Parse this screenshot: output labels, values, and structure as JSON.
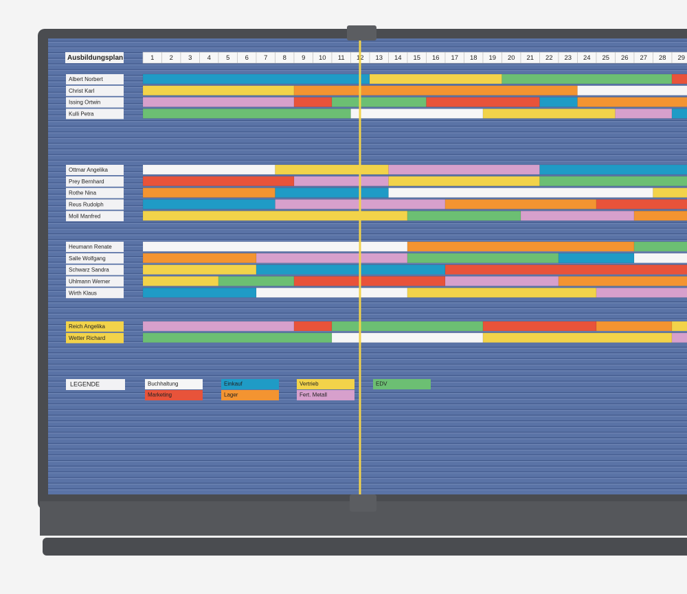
{
  "board": {
    "title": "Ausbildungsplan",
    "weeks": [
      1,
      2,
      3,
      4,
      5,
      6,
      7,
      8,
      9,
      10,
      11,
      12,
      13,
      14,
      15,
      16,
      17,
      18,
      19,
      20,
      21,
      22,
      23,
      24,
      25,
      26,
      27,
      28,
      29
    ],
    "groups": [
      {
        "rows": [
          {
            "name": "Albert Norbert",
            "segments": [
              {
                "from": 0,
                "to": 12,
                "color": "#1f9bc6"
              },
              {
                "from": 12,
                "to": 19,
                "color": "#f2d34a"
              },
              {
                "from": 19,
                "to": 28,
                "color": "#6cbf73"
              },
              {
                "from": 28,
                "to": 29,
                "color": "#e8533a"
              }
            ]
          },
          {
            "name": "Christ Karl",
            "segments": [
              {
                "from": 0,
                "to": 8,
                "color": "#f2d34a"
              },
              {
                "from": 8,
                "to": 23,
                "color": "#f39431"
              },
              {
                "from": 23,
                "to": 29,
                "color": "#f6f6f6"
              }
            ]
          },
          {
            "name": "Issing Ortwin",
            "segments": [
              {
                "from": 0,
                "to": 8,
                "color": "#d7a0cc"
              },
              {
                "from": 8,
                "to": 10,
                "color": "#e8533a"
              },
              {
                "from": 10,
                "to": 15,
                "color": "#6cbf73"
              },
              {
                "from": 15,
                "to": 21,
                "color": "#e8533a"
              },
              {
                "from": 21,
                "to": 23,
                "color": "#1f9bc6"
              },
              {
                "from": 23,
                "to": 29,
                "color": "#f39431"
              }
            ]
          },
          {
            "name": "Kulli Petra",
            "segments": [
              {
                "from": 0,
                "to": 11,
                "color": "#6cbf73"
              },
              {
                "from": 11,
                "to": 18,
                "color": "#f6f6f6"
              },
              {
                "from": 18,
                "to": 25,
                "color": "#f2d34a"
              },
              {
                "from": 25,
                "to": 28,
                "color": "#d7a0cc"
              },
              {
                "from": 28,
                "to": 29,
                "color": "#1f9bc6"
              }
            ]
          }
        ]
      },
      {
        "rows": [
          {
            "name": "Ottmar Angelika",
            "segments": [
              {
                "from": 0,
                "to": 7,
                "color": "#f6f6f6"
              },
              {
                "from": 7,
                "to": 13,
                "color": "#f2d34a"
              },
              {
                "from": 13,
                "to": 21,
                "color": "#d7a0cc"
              },
              {
                "from": 21,
                "to": 29,
                "color": "#1f9bc6"
              }
            ]
          },
          {
            "name": "Prey Bernhard",
            "segments": [
              {
                "from": 0,
                "to": 8,
                "color": "#e8533a"
              },
              {
                "from": 8,
                "to": 13,
                "color": "#d7a0cc"
              },
              {
                "from": 13,
                "to": 21,
                "color": "#f2d34a"
              },
              {
                "from": 21,
                "to": 29,
                "color": "#6cbf73"
              }
            ]
          },
          {
            "name": "Rothe Nina",
            "segments": [
              {
                "from": 0,
                "to": 7,
                "color": "#f39431"
              },
              {
                "from": 7,
                "to": 13,
                "color": "#1f9bc6"
              },
              {
                "from": 13,
                "to": 27,
                "color": "#f6f6f6"
              },
              {
                "from": 27,
                "to": 29,
                "color": "#f2d34a"
              }
            ]
          },
          {
            "name": "Reus Rudolph",
            "segments": [
              {
                "from": 0,
                "to": 7,
                "color": "#1f9bc6"
              },
              {
                "from": 7,
                "to": 16,
                "color": "#d7a0cc"
              },
              {
                "from": 16,
                "to": 24,
                "color": "#f39431"
              },
              {
                "from": 24,
                "to": 29,
                "color": "#e8533a"
              }
            ]
          },
          {
            "name": "Moll Manfred",
            "segments": [
              {
                "from": 0,
                "to": 14,
                "color": "#f2d34a"
              },
              {
                "from": 14,
                "to": 20,
                "color": "#6cbf73"
              },
              {
                "from": 20,
                "to": 26,
                "color": "#d7a0cc"
              },
              {
                "from": 26,
                "to": 29,
                "color": "#f39431"
              }
            ]
          }
        ]
      },
      {
        "rows": [
          {
            "name": "Heumann Renate",
            "segments": [
              {
                "from": 0,
                "to": 14,
                "color": "#f6f6f6"
              },
              {
                "from": 14,
                "to": 26,
                "color": "#f39431"
              },
              {
                "from": 26,
                "to": 29,
                "color": "#6cbf73"
              }
            ]
          },
          {
            "name": "Salle Wolfgang",
            "segments": [
              {
                "from": 0,
                "to": 6,
                "color": "#f39431"
              },
              {
                "from": 6,
                "to": 14,
                "color": "#d7a0cc"
              },
              {
                "from": 14,
                "to": 22,
                "color": "#6cbf73"
              },
              {
                "from": 22,
                "to": 26,
                "color": "#1f9bc6"
              },
              {
                "from": 26,
                "to": 29,
                "color": "#f6f6f6"
              }
            ]
          },
          {
            "name": "Schwarz Sandra",
            "segments": [
              {
                "from": 0,
                "to": 6,
                "color": "#f2d34a"
              },
              {
                "from": 6,
                "to": 16,
                "color": "#1f9bc6"
              },
              {
                "from": 16,
                "to": 29,
                "color": "#e8533a"
              }
            ]
          },
          {
            "name": "Uhlmann Werner",
            "segments": [
              {
                "from": 0,
                "to": 4,
                "color": "#f2d34a"
              },
              {
                "from": 4,
                "to": 8,
                "color": "#6cbf73"
              },
              {
                "from": 8,
                "to": 16,
                "color": "#e8533a"
              },
              {
                "from": 16,
                "to": 22,
                "color": "#d7a0cc"
              },
              {
                "from": 22,
                "to": 29,
                "color": "#f39431"
              }
            ]
          },
          {
            "name": "Wirth Klaus",
            "segments": [
              {
                "from": 0,
                "to": 6,
                "color": "#1f9bc6"
              },
              {
                "from": 6,
                "to": 14,
                "color": "#f6f6f6"
              },
              {
                "from": 14,
                "to": 24,
                "color": "#f2d34a"
              },
              {
                "from": 24,
                "to": 29,
                "color": "#d7a0cc"
              }
            ]
          }
        ]
      },
      {
        "label_color": "#f2d34a",
        "rows": [
          {
            "name": "Reich Angelika",
            "segments": [
              {
                "from": 0,
                "to": 8,
                "color": "#d7a0cc"
              },
              {
                "from": 8,
                "to": 10,
                "color": "#e8533a"
              },
              {
                "from": 10,
                "to": 18,
                "color": "#6cbf73"
              },
              {
                "from": 18,
                "to": 24,
                "color": "#e8533a"
              },
              {
                "from": 24,
                "to": 28,
                "color": "#f39431"
              },
              {
                "from": 28,
                "to": 29,
                "color": "#f2d34a"
              }
            ]
          },
          {
            "name": "Wetter Richard",
            "segments": [
              {
                "from": 0,
                "to": 10,
                "color": "#6cbf73"
              },
              {
                "from": 10,
                "to": 18,
                "color": "#f6f6f6"
              },
              {
                "from": 18,
                "to": 28,
                "color": "#f2d34a"
              },
              {
                "from": 28,
                "to": 29,
                "color": "#d7a0cc"
              }
            ]
          }
        ]
      }
    ],
    "legend": {
      "title": "LEGENDE",
      "items": [
        {
          "label": "Buchhaltung",
          "color": "#f6f6f6"
        },
        {
          "label": "Marketing",
          "color": "#e8533a"
        },
        {
          "label": "Einkauf",
          "color": "#1f9bc6"
        },
        {
          "label": "Lager",
          "color": "#f39431"
        },
        {
          "label": "Vertrieb",
          "color": "#f2d34a"
        },
        {
          "label": "Fert. Metall",
          "color": "#d7a0cc"
        },
        {
          "label": "EDV",
          "color": "#6cbf73"
        }
      ]
    }
  }
}
